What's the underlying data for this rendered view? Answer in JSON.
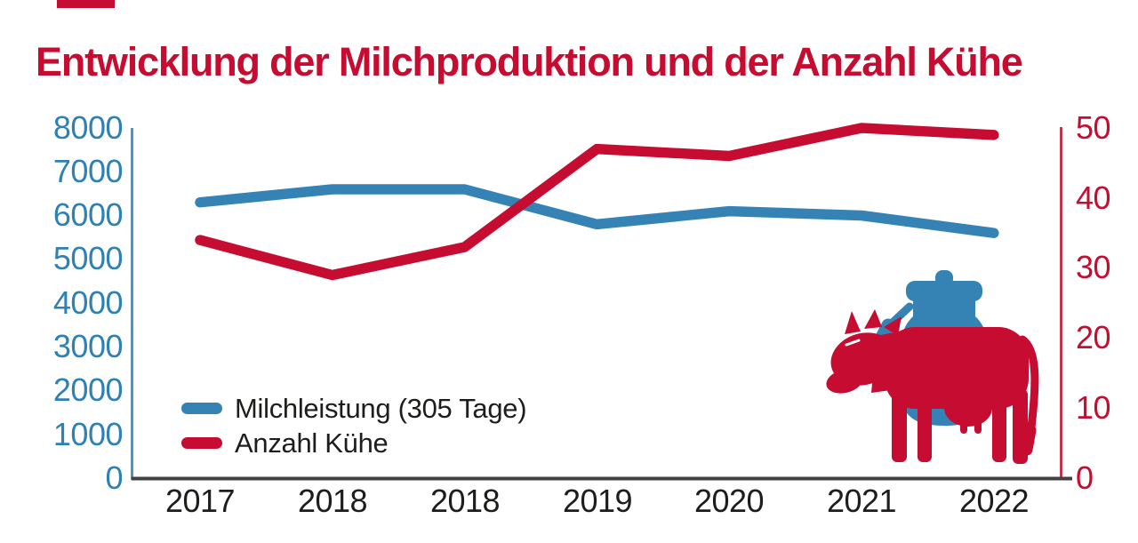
{
  "title": {
    "text": "Entwicklung der Milchproduktion und der Anzahl Kühe",
    "color": "#c60c30"
  },
  "accent_bar": {
    "color": "#c60c30"
  },
  "chart_data": {
    "type": "line",
    "title": "Entwicklung der Milchproduktion und der Anzahl Kühe",
    "categories": [
      "2017",
      "2018",
      "2018",
      "2019",
      "2020",
      "2021",
      "2022"
    ],
    "series": [
      {
        "name": "Milchleistung (305 Tage)",
        "axis": "left",
        "color": "#3583b5",
        "values": [
          6300,
          6600,
          6600,
          5800,
          6100,
          6000,
          5600
        ]
      },
      {
        "name": "Anzahl Kühe",
        "axis": "right",
        "color": "#c60c30",
        "values": [
          34,
          29,
          33,
          47,
          46,
          50,
          49
        ]
      }
    ],
    "left_axis": {
      "min": 0,
      "max": 8000,
      "step": 1000,
      "color": "#2e81b5",
      "tick_labels": [
        "8000",
        "7000",
        "6000",
        "5000",
        "4000",
        "3000",
        "2000",
        "1000",
        "0"
      ]
    },
    "right_axis": {
      "min": 0,
      "max": 50,
      "step": 10,
      "color": "#c60c30",
      "tick_labels": [
        "50",
        "40",
        "30",
        "20",
        "10",
        "0"
      ]
    },
    "xlabel": "",
    "ylabel_left": "",
    "ylabel_right": "",
    "grid": false,
    "legend_position": "inside-bottom-left"
  },
  "illustration": {
    "milk_can_icon_color": "#3583b5",
    "cow_icon_color": "#c60c30"
  }
}
